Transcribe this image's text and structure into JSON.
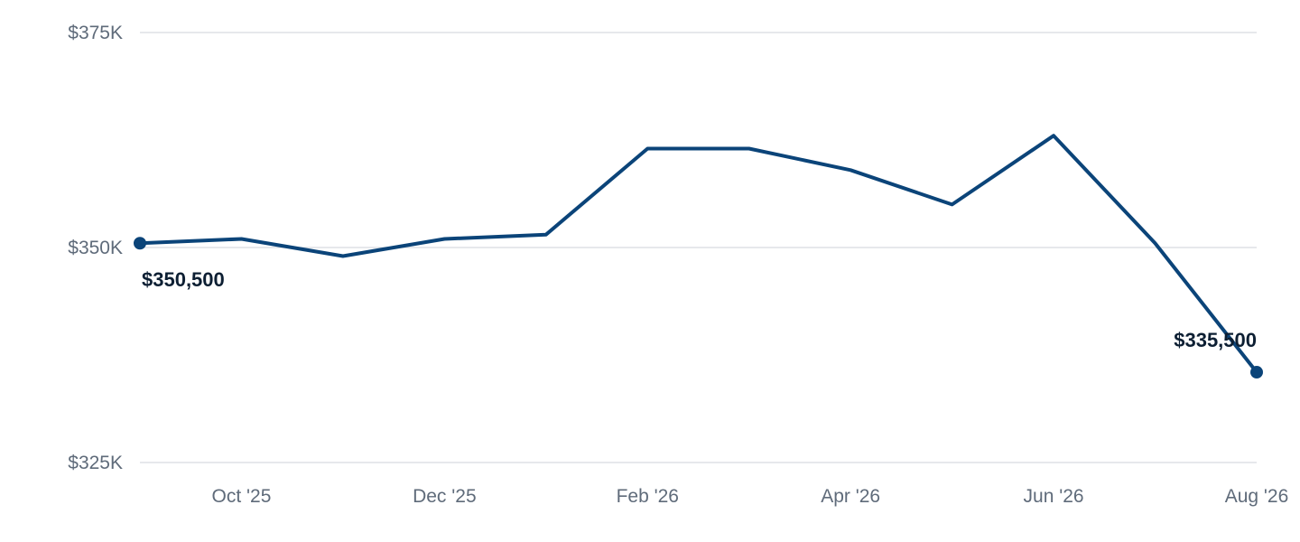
{
  "chart_data": {
    "type": "line",
    "x": [
      "2025-09",
      "2025-10",
      "2025-11",
      "2025-12",
      "2026-01",
      "2026-02",
      "2026-03",
      "2026-04",
      "2026-05",
      "2026-06",
      "2026-07",
      "2026-08"
    ],
    "series": [
      {
        "values": [
          350500,
          351000,
          349000,
          351000,
          351500,
          361500,
          361500,
          359000,
          355000,
          363000,
          350500,
          335500
        ]
      }
    ],
    "x_tick_labels": [
      {
        "x": "2025-10",
        "label": "Oct '25"
      },
      {
        "x": "2025-12",
        "label": "Dec '25"
      },
      {
        "x": "2026-02",
        "label": "Feb '26"
      },
      {
        "x": "2026-04",
        "label": "Apr '26"
      },
      {
        "x": "2026-06",
        "label": "Jun '26"
      },
      {
        "x": "2026-08",
        "label": "Aug '26"
      }
    ],
    "y_ticks": [
      {
        "value": 325000,
        "label": "$325K"
      },
      {
        "value": 350000,
        "label": "$350K"
      },
      {
        "value": 375000,
        "label": "$375K"
      }
    ],
    "ylim": [
      325000,
      375000
    ],
    "data_labels": [
      {
        "index": 0,
        "label": "$350,500"
      },
      {
        "index": 11,
        "label": "$335,500"
      }
    ],
    "title": "",
    "xlabel": "",
    "ylabel": "",
    "grid": "horizontal",
    "colors": {
      "line": "#0b4479",
      "grid": "#dde1e6",
      "tick_text": "#5f6b7a",
      "label_text": "#0d1f33"
    }
  }
}
